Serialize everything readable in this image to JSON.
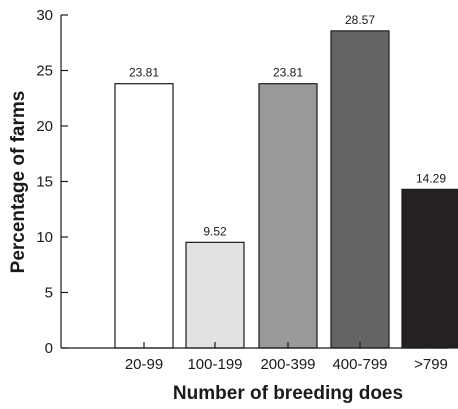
{
  "chart_data": {
    "type": "bar",
    "title": "",
    "xlabel": "Number of breeding does",
    "ylabel": "Percentage of farms",
    "categories": [
      "20-99",
      "100-199",
      "200-399",
      "400-799",
      ">799"
    ],
    "values": [
      23.81,
      9.52,
      23.81,
      28.57,
      14.29
    ],
    "value_labels": [
      "23.81",
      "9.52",
      "23.81",
      "28.57",
      "14.29"
    ],
    "bar_colors": [
      "#ffffff",
      "#e2e2e2",
      "#999999",
      "#646464",
      "#252122"
    ],
    "ylim": [
      0,
      30
    ],
    "yticks": [
      0,
      5,
      10,
      15,
      20,
      25,
      30
    ],
    "grid": false,
    "legend": "none"
  }
}
